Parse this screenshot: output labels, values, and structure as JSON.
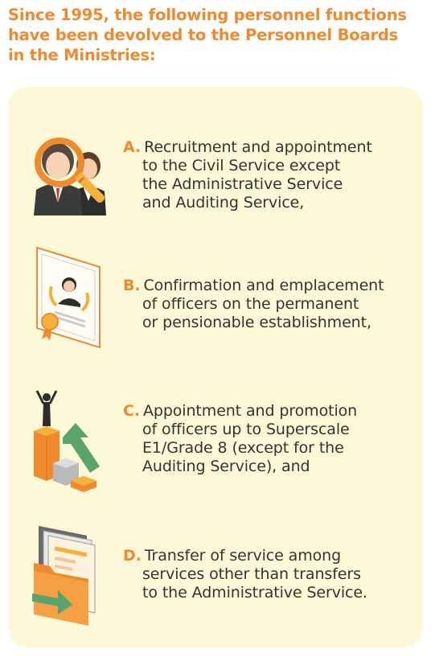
{
  "heading": {
    "lines": [
      "Since 1995, the following personnel functions",
      "have been devolved to the Personnel Boards",
      "in the Ministries:"
    ]
  },
  "colors": {
    "accent": "#f08a2e",
    "panel": "#fdf9d8",
    "text": "#333333"
  },
  "items": [
    {
      "letter": "A.",
      "icon": "magnifier-people-icon",
      "lines": [
        "Recruitment and appointment",
        "to the Civil Service except",
        "the Administrative Service",
        "and Auditing Service,"
      ]
    },
    {
      "letter": "B.",
      "icon": "certificate-icon",
      "lines": [
        "Confirmation and emplacement",
        "of officers on the permanent",
        "or pensionable establishment,"
      ]
    },
    {
      "letter": "C.",
      "icon": "promotion-chart-icon",
      "lines": [
        "Appointment and promotion",
        "of officers up to Superscale",
        "E1/Grade 8 (except for the",
        "Auditing Service), and"
      ]
    },
    {
      "letter": "D.",
      "icon": "file-transfer-icon",
      "lines": [
        "Transfer of service among",
        "services other than transfers",
        "to the Administrative Service."
      ]
    }
  ]
}
